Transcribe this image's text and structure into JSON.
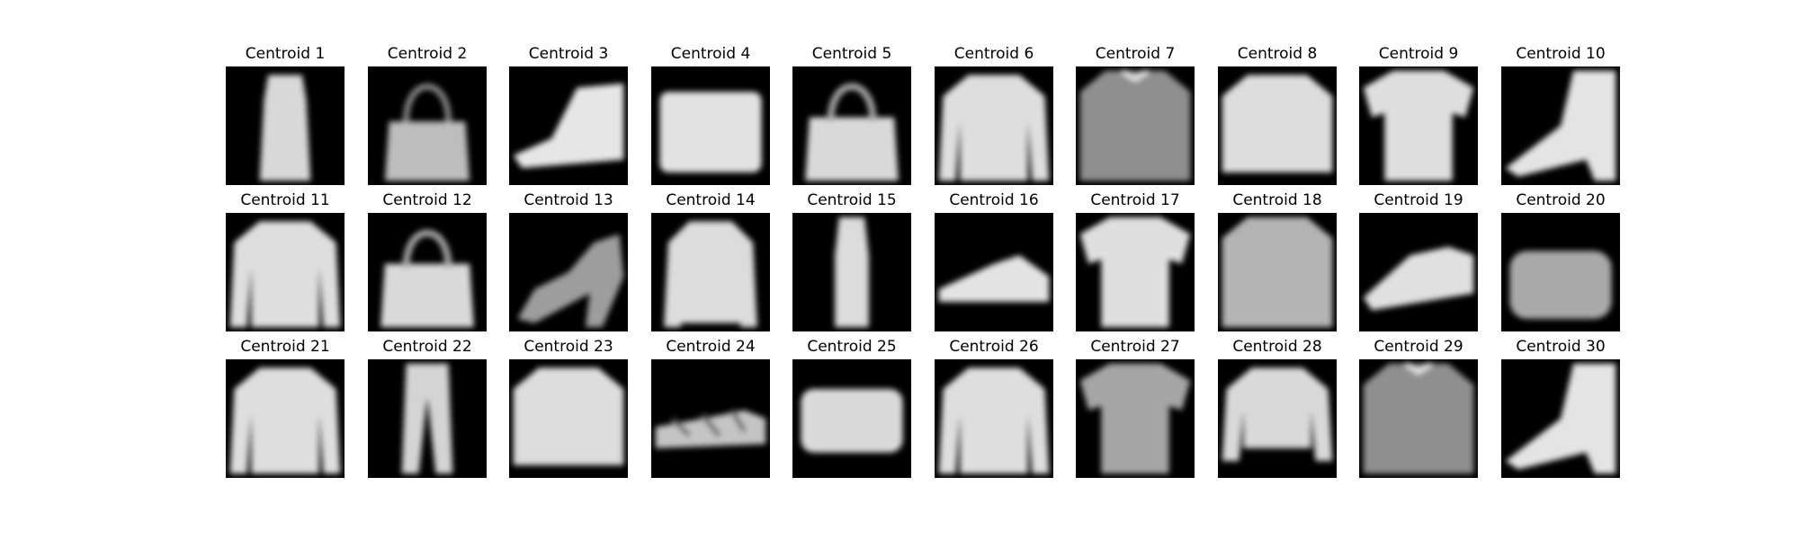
{
  "figure": {
    "centroids": [
      {
        "title": "Centroid 1",
        "icon": "dress-silhouette"
      },
      {
        "title": "Centroid 2",
        "icon": "bag-silhouette-faint"
      },
      {
        "title": "Centroid 3",
        "icon": "ankle-boot-silhouette"
      },
      {
        "title": "Centroid 4",
        "icon": "bag-silhouette-wide"
      },
      {
        "title": "Centroid 5",
        "icon": "bag-silhouette-handle"
      },
      {
        "title": "Centroid 6",
        "icon": "pullover-silhouette"
      },
      {
        "title": "Centroid 7",
        "icon": "shirt-silhouette-dim"
      },
      {
        "title": "Centroid 8",
        "icon": "coat-silhouette"
      },
      {
        "title": "Centroid 9",
        "icon": "tshirt-silhouette"
      },
      {
        "title": "Centroid 10",
        "icon": "heeled-boot-silhouette"
      },
      {
        "title": "Centroid 11",
        "icon": "pullover-silhouette"
      },
      {
        "title": "Centroid 12",
        "icon": "bag-silhouette-handle"
      },
      {
        "title": "Centroid 13",
        "icon": "sandal-silhouette"
      },
      {
        "title": "Centroid 14",
        "icon": "pullover-silhouette-narrow"
      },
      {
        "title": "Centroid 15",
        "icon": "dress-silhouette-narrow"
      },
      {
        "title": "Centroid 16",
        "icon": "sneaker-silhouette"
      },
      {
        "title": "Centroid 17",
        "icon": "tshirt-silhouette"
      },
      {
        "title": "Centroid 18",
        "icon": "shirt-silhouette"
      },
      {
        "title": "Centroid 19",
        "icon": "sneaker-silhouette-high"
      },
      {
        "title": "Centroid 20",
        "icon": "bag-silhouette-blurred"
      },
      {
        "title": "Centroid 21",
        "icon": "pullover-silhouette-wide"
      },
      {
        "title": "Centroid 22",
        "icon": "trouser-silhouette"
      },
      {
        "title": "Centroid 23",
        "icon": "coat-silhouette-wide"
      },
      {
        "title": "Centroid 24",
        "icon": "sandal-silhouette-flat"
      },
      {
        "title": "Centroid 25",
        "icon": "bag-silhouette-flat"
      },
      {
        "title": "Centroid 26",
        "icon": "pullover-silhouette"
      },
      {
        "title": "Centroid 27",
        "icon": "tshirt-silhouette-dim"
      },
      {
        "title": "Centroid 28",
        "icon": "pullover-silhouette-cropped"
      },
      {
        "title": "Centroid 29",
        "icon": "shirt-silhouette-dim"
      },
      {
        "title": "Centroid 30",
        "icon": "heeled-boot-silhouette"
      }
    ]
  }
}
